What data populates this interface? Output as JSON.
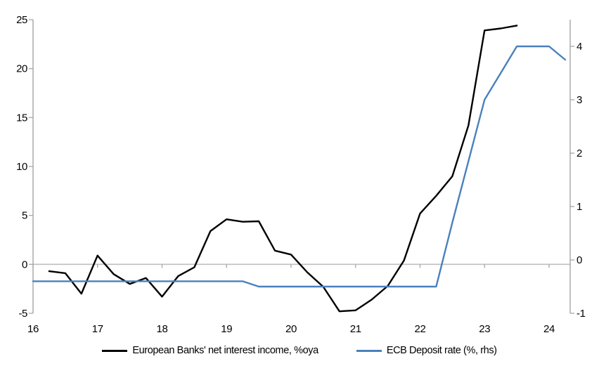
{
  "chart_data": {
    "type": "line",
    "title": "",
    "grid": "zero-line-only",
    "legend_position": "bottom-center",
    "x_axis": {
      "ticks": [
        16,
        17,
        18,
        19,
        20,
        21,
        22,
        23,
        24
      ],
      "tick_labels": [
        "16",
        "17",
        "18",
        "19",
        "20",
        "21",
        "22",
        "23",
        "24"
      ],
      "range": [
        16,
        24.327
      ]
    },
    "left_axis": {
      "ticks": [
        -5,
        0,
        5,
        10,
        15,
        20,
        25
      ],
      "tick_labels": [
        "-5",
        "0",
        "5",
        "10",
        "15",
        "20",
        "25"
      ],
      "range": [
        -5,
        25
      ]
    },
    "right_axis": {
      "ticks": [
        -1,
        0,
        1,
        2,
        3,
        4
      ],
      "tick_labels": [
        "-1",
        "0",
        "1",
        "2",
        "3",
        "4"
      ],
      "range": [
        -1,
        4.5
      ]
    },
    "series": [
      {
        "name": "European Banks' net interest income, %oya",
        "axis": "left",
        "color": "#000000",
        "width": 2.4,
        "x": [
          16.25,
          16.5,
          16.75,
          17.0,
          17.25,
          17.5,
          17.75,
          18.0,
          18.25,
          18.5,
          18.75,
          19.0,
          19.25,
          19.5,
          19.75,
          20.0,
          20.25,
          20.5,
          20.75,
          21.0,
          21.25,
          21.5,
          21.75,
          22.0,
          22.25,
          22.5,
          22.75,
          23.0,
          23.25,
          23.5
        ],
        "values": [
          -0.7,
          -0.9,
          -3.0,
          0.9,
          -1.0,
          -2.0,
          -1.4,
          -3.3,
          -1.2,
          -0.3,
          3.4,
          4.6,
          4.35,
          4.4,
          1.4,
          1.0,
          -0.8,
          -2.3,
          -4.8,
          -4.7,
          -3.6,
          -2.2,
          0.4,
          5.2,
          7.0,
          9.0,
          14.2,
          23.9,
          24.1,
          24.4
        ]
      },
      {
        "name": "ECB Deposit rate (%, rhs)",
        "axis": "right",
        "color": "#4a80bd",
        "width": 2.4,
        "x": [
          16.0,
          16.25,
          16.5,
          16.75,
          17.0,
          17.25,
          17.5,
          17.75,
          18.0,
          18.25,
          18.5,
          18.75,
          19.0,
          19.25,
          19.5,
          19.75,
          20.0,
          20.25,
          20.5,
          20.75,
          21.0,
          21.25,
          21.5,
          21.75,
          22.0,
          22.25,
          22.5,
          22.75,
          23.0,
          23.25,
          23.5,
          23.75,
          24.0,
          24.25
        ],
        "values": [
          -0.4,
          -0.4,
          -0.4,
          -0.4,
          -0.4,
          -0.4,
          -0.4,
          -0.4,
          -0.4,
          -0.4,
          -0.4,
          -0.4,
          -0.4,
          -0.4,
          -0.5,
          -0.5,
          -0.5,
          -0.5,
          -0.5,
          -0.5,
          -0.5,
          -0.5,
          -0.5,
          -0.5,
          -0.5,
          -0.5,
          0.7,
          1.85,
          3.0,
          3.5,
          4.0,
          4.0,
          4.0,
          3.75
        ]
      }
    ]
  },
  "legend": {
    "series1_label": "European Banks' net interest income, %oya",
    "series2_label": "ECB Deposit rate (%, rhs)"
  },
  "colors": {
    "line_black": "#000000",
    "line_blue": "#4a80bd",
    "axis_line": "#a6a6a6",
    "zero_gridline": "#bfbfbf",
    "background": "#ffffff",
    "text": "#000000"
  }
}
